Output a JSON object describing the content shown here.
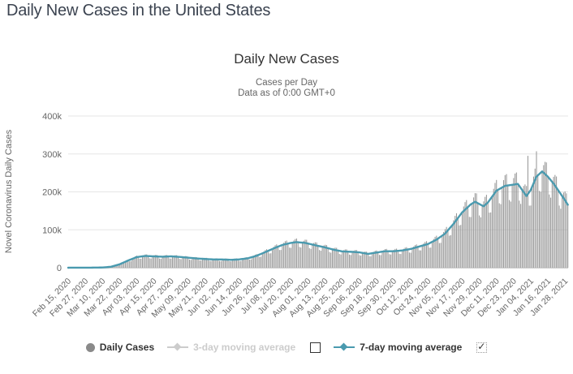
{
  "page": {
    "title": "Daily New Cases in the United States"
  },
  "chart_data": {
    "type": "bar",
    "title": "Daily New Cases",
    "subtitle_line1": "Cases per Day",
    "subtitle_line2": "Data as of 0:00 GMT+0",
    "ylabel": "Novel Coronavirus Daily Cases",
    "xlabel": "",
    "ylim": [
      0,
      400000
    ],
    "grid": true,
    "legend_position": "bottom",
    "y_ticks": [
      {
        "value": 0,
        "label": "0"
      },
      {
        "value": 100000,
        "label": "100k"
      },
      {
        "value": 200000,
        "label": "200k"
      },
      {
        "value": 300000,
        "label": "300k"
      },
      {
        "value": 400000,
        "label": "400k"
      }
    ],
    "x_tick_interval_days": 12,
    "total_days": 351,
    "x_tick_labels": [
      "Feb 15, 2020",
      "Feb 27, 2020",
      "Mar 10, 2020",
      "Mar 22, 2020",
      "Apr 03, 2020",
      "Apr 15, 2020",
      "Apr 27, 2020",
      "May 09, 2020",
      "May 21, 2020",
      "Jun 02, 2020",
      "Jun 14, 2020",
      "Jun 26, 2020",
      "Jul 08, 2020",
      "Jul 20, 2020",
      "Aug 01, 2020",
      "Aug 13, 2020",
      "Aug 25, 2020",
      "Sep 06, 2020",
      "Sep 18, 2020",
      "Sep 30, 2020",
      "Oct 12, 2020",
      "Oct 24, 2020",
      "Nov 05, 2020",
      "Nov 17, 2020",
      "Nov 29, 2020",
      "Dec 11, 2020",
      "Dec 23, 2020",
      "Jan 04, 2021",
      "Jan 16, 2021",
      "Jan 28, 2021"
    ],
    "series": [
      {
        "name": "Daily Cases",
        "type": "bar",
        "color": "#979797",
        "derive": {
          "from": "7-day moving average",
          "pattern_start_weekday": "Saturday",
          "weekday_pattern": [
            1.0,
            0.82,
            0.8,
            1.0,
            1.08,
            1.13,
            1.14
          ],
          "outliers": {
            "322": 295000,
            "328": 307000
          }
        }
      },
      {
        "name": "3-day moving average",
        "type": "line",
        "color": "#cccccc",
        "visible": false
      },
      {
        "name": "7-day moving average",
        "type": "line",
        "color": "#4a9aaf",
        "visible": true,
        "points_day_value": [
          [
            0,
            30
          ],
          [
            12,
            60
          ],
          [
            24,
            600
          ],
          [
            30,
            2500
          ],
          [
            36,
            9000
          ],
          [
            42,
            19000
          ],
          [
            48,
            28000
          ],
          [
            54,
            31000
          ],
          [
            60,
            30000
          ],
          [
            66,
            29000
          ],
          [
            72,
            30000
          ],
          [
            78,
            28500
          ],
          [
            84,
            26500
          ],
          [
            90,
            24500
          ],
          [
            96,
            23000
          ],
          [
            102,
            21800
          ],
          [
            108,
            21800
          ],
          [
            114,
            20800
          ],
          [
            120,
            22000
          ],
          [
            126,
            25000
          ],
          [
            132,
            31500
          ],
          [
            138,
            41000
          ],
          [
            144,
            51000
          ],
          [
            150,
            60000
          ],
          [
            156,
            65500
          ],
          [
            160,
            67500
          ],
          [
            166,
            65500
          ],
          [
            174,
            58500
          ],
          [
            180,
            53500
          ],
          [
            186,
            47500
          ],
          [
            192,
            43000
          ],
          [
            198,
            42000
          ],
          [
            204,
            40500
          ],
          [
            210,
            36500
          ],
          [
            216,
            40000
          ],
          [
            222,
            43500
          ],
          [
            228,
            43500
          ],
          [
            234,
            45500
          ],
          [
            240,
            49500
          ],
          [
            246,
            56000
          ],
          [
            252,
            62500
          ],
          [
            258,
            74000
          ],
          [
            264,
            90000
          ],
          [
            270,
            116000
          ],
          [
            276,
            146000
          ],
          [
            282,
            167000
          ],
          [
            285,
            174000
          ],
          [
            288,
            168000
          ],
          [
            291,
            162000
          ],
          [
            294,
            172000
          ],
          [
            300,
            203000
          ],
          [
            306,
            216000
          ],
          [
            312,
            219000
          ],
          [
            315,
            221000
          ],
          [
            318,
            205000
          ],
          [
            321,
            189000
          ],
          [
            324,
            205000
          ],
          [
            328,
            240000
          ],
          [
            332,
            254000
          ],
          [
            336,
            240000
          ],
          [
            340,
            222000
          ],
          [
            344,
            200000
          ],
          [
            348,
            178000
          ],
          [
            350,
            166000
          ]
        ]
      }
    ]
  },
  "legend": {
    "items": [
      {
        "label": "Daily Cases",
        "marker": "circle",
        "color": "#8a8a8a",
        "text_color": "#333333",
        "enabled": true
      },
      {
        "label": "3-day moving average",
        "marker": "line-diamond",
        "color": "#cccccc",
        "text_color": "#cccccc",
        "enabled": false,
        "checkbox": "unchecked"
      },
      {
        "label": "7-day moving average",
        "marker": "line-diamond",
        "color": "#4a9aaf",
        "text_color": "#333333",
        "enabled": true,
        "checkbox": "checked"
      }
    ],
    "check_glyph": "✓"
  },
  "colors": {
    "accent_line": "#4a9aaf",
    "bars": "#979797",
    "gridline": "#e6e6e6",
    "axis_line": "#cfcfcf",
    "tick_text": "#666666",
    "chart_title_text": "#333333",
    "page_title_text": "#3b4350",
    "disabled_text": "#cccccc"
  }
}
